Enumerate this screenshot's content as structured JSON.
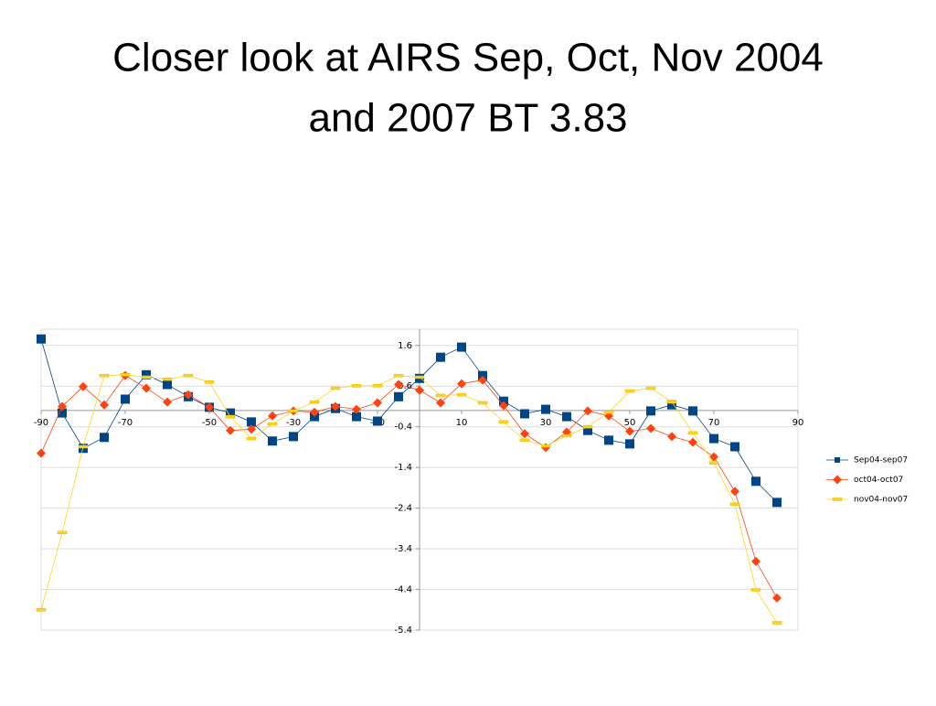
{
  "chart_data": {
    "type": "line",
    "title": [
      "Closer look at AIRS Sep, Oct, Nov 2004",
      "and 2007 BT 3.83"
    ],
    "x": [
      -90,
      -85,
      -80,
      -75,
      -70,
      -65,
      -60,
      -55,
      -50,
      -45,
      -40,
      -35,
      -30,
      -25,
      -20,
      -15,
      -10,
      -5,
      0,
      5,
      10,
      15,
      20,
      25,
      30,
      35,
      40,
      45,
      50,
      55,
      60,
      65,
      70,
      75,
      80,
      85
    ],
    "series": [
      {
        "name": "Sep04-sep07",
        "color": "#004586",
        "marker": "square",
        "values": [
          1.76,
          -0.06,
          -0.93,
          -0.66,
          0.28,
          0.88,
          0.64,
          0.34,
          0.08,
          -0.06,
          -0.28,
          -0.75,
          -0.64,
          -0.15,
          0.05,
          -0.15,
          -0.26,
          0.34,
          0.79,
          1.31,
          1.56,
          0.86,
          0.23,
          -0.08,
          0.03,
          -0.15,
          -0.49,
          -0.73,
          -0.82,
          -0.01,
          0.14,
          -0.01,
          -0.69,
          -0.89,
          -1.74,
          -2.26
        ]
      },
      {
        "name": "oct04-oct07",
        "color": "#ff420e",
        "marker": "diamond",
        "values": [
          -1.05,
          0.1,
          0.59,
          0.14,
          0.86,
          0.55,
          0.21,
          0.39,
          0.08,
          -0.49,
          -0.46,
          -0.13,
          -0.01,
          -0.04,
          0.1,
          0.03,
          0.19,
          0.64,
          0.5,
          0.19,
          0.66,
          0.75,
          0.12,
          -0.57,
          -0.91,
          -0.53,
          -0.01,
          -0.13,
          -0.51,
          -0.44,
          -0.64,
          -0.78,
          -1.14,
          -1.99,
          -3.71,
          -4.61
        ]
      },
      {
        "name": "nov04-nov07",
        "color": "#ffd320",
        "marker": "dash",
        "values": [
          -4.9,
          -3.0,
          -0.89,
          0.86,
          0.88,
          0.82,
          0.77,
          0.86,
          0.7,
          -0.15,
          -0.69,
          -0.33,
          -0.01,
          0.21,
          0.55,
          0.61,
          0.61,
          0.86,
          0.82,
          0.37,
          0.39,
          0.19,
          -0.28,
          -0.73,
          -0.87,
          -0.62,
          -0.4,
          -0.04,
          0.48,
          0.55,
          0.21,
          -0.55,
          -1.29,
          -2.3,
          -4.41,
          -5.22
        ]
      }
    ],
    "xlim": [
      -90,
      90
    ],
    "xticks": [
      -90,
      -70,
      -50,
      -30,
      -10,
      10,
      30,
      50,
      70,
      90
    ],
    "ylim": [
      -5.4,
      2
    ],
    "yticks": [
      1.6,
      0.6,
      -0.4,
      -1.4,
      -2.4,
      -3.4,
      -4.4,
      -5.4
    ],
    "grid": true,
    "legend": "right"
  }
}
